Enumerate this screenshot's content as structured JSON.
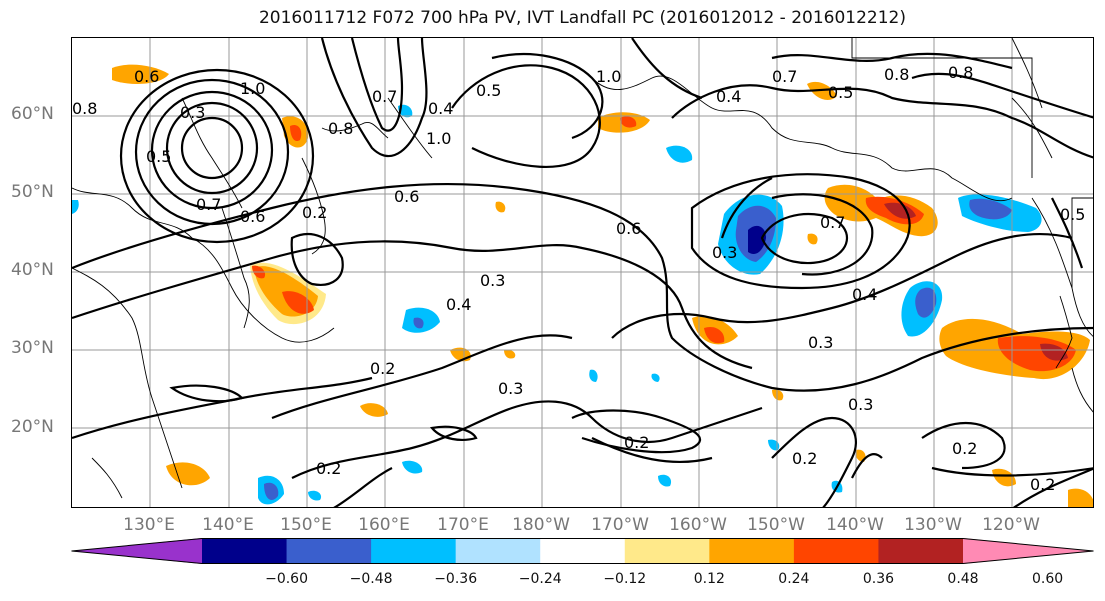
{
  "title": "2016011712 F072 700 hPa PV, IVT Landfall PC (2016012012 - 2016012212)",
  "lat_labels": [
    "60°N",
    "50°N",
    "40°N",
    "30°N",
    "20°N"
  ],
  "lon_labels": [
    "130°E",
    "140°E",
    "150°E",
    "160°E",
    "170°E",
    "180°W",
    "170°W",
    "160°W",
    "150°W",
    "140°W",
    "130°W",
    "120°W"
  ],
  "colorbar": {
    "ticks": [
      "−0.60",
      "−0.48",
      "−0.36",
      "−0.24",
      "−0.12",
      "0.12",
      "0.24",
      "0.36",
      "0.48",
      "0.60"
    ],
    "colors": [
      "#9932cc",
      "#00008b",
      "#3a5fcd",
      "#00bfff",
      "#b0e2ff",
      "#ffffff",
      "#ffe98a",
      "#ffa500",
      "#ff4500",
      "#b22222",
      "#ff8ab4"
    ]
  },
  "contour_labels": [
    "0.6",
    "0.8",
    "0.3",
    "1.0",
    "0.5",
    "0.7",
    "0.6",
    "0.8",
    "0.7",
    "1.0",
    "0.4",
    "0.7",
    "0.5",
    "1.0",
    "0.8",
    "0.6",
    "0.6",
    "0.4",
    "0.8",
    "0.7",
    "0.5",
    "0.5",
    "0.3",
    "0.4",
    "0.4",
    "0.2",
    "0.3",
    "0.3",
    "0.3",
    "0.2",
    "0.2",
    "0.2",
    "0.2",
    "0.2",
    "0.2",
    "0.3"
  ]
}
